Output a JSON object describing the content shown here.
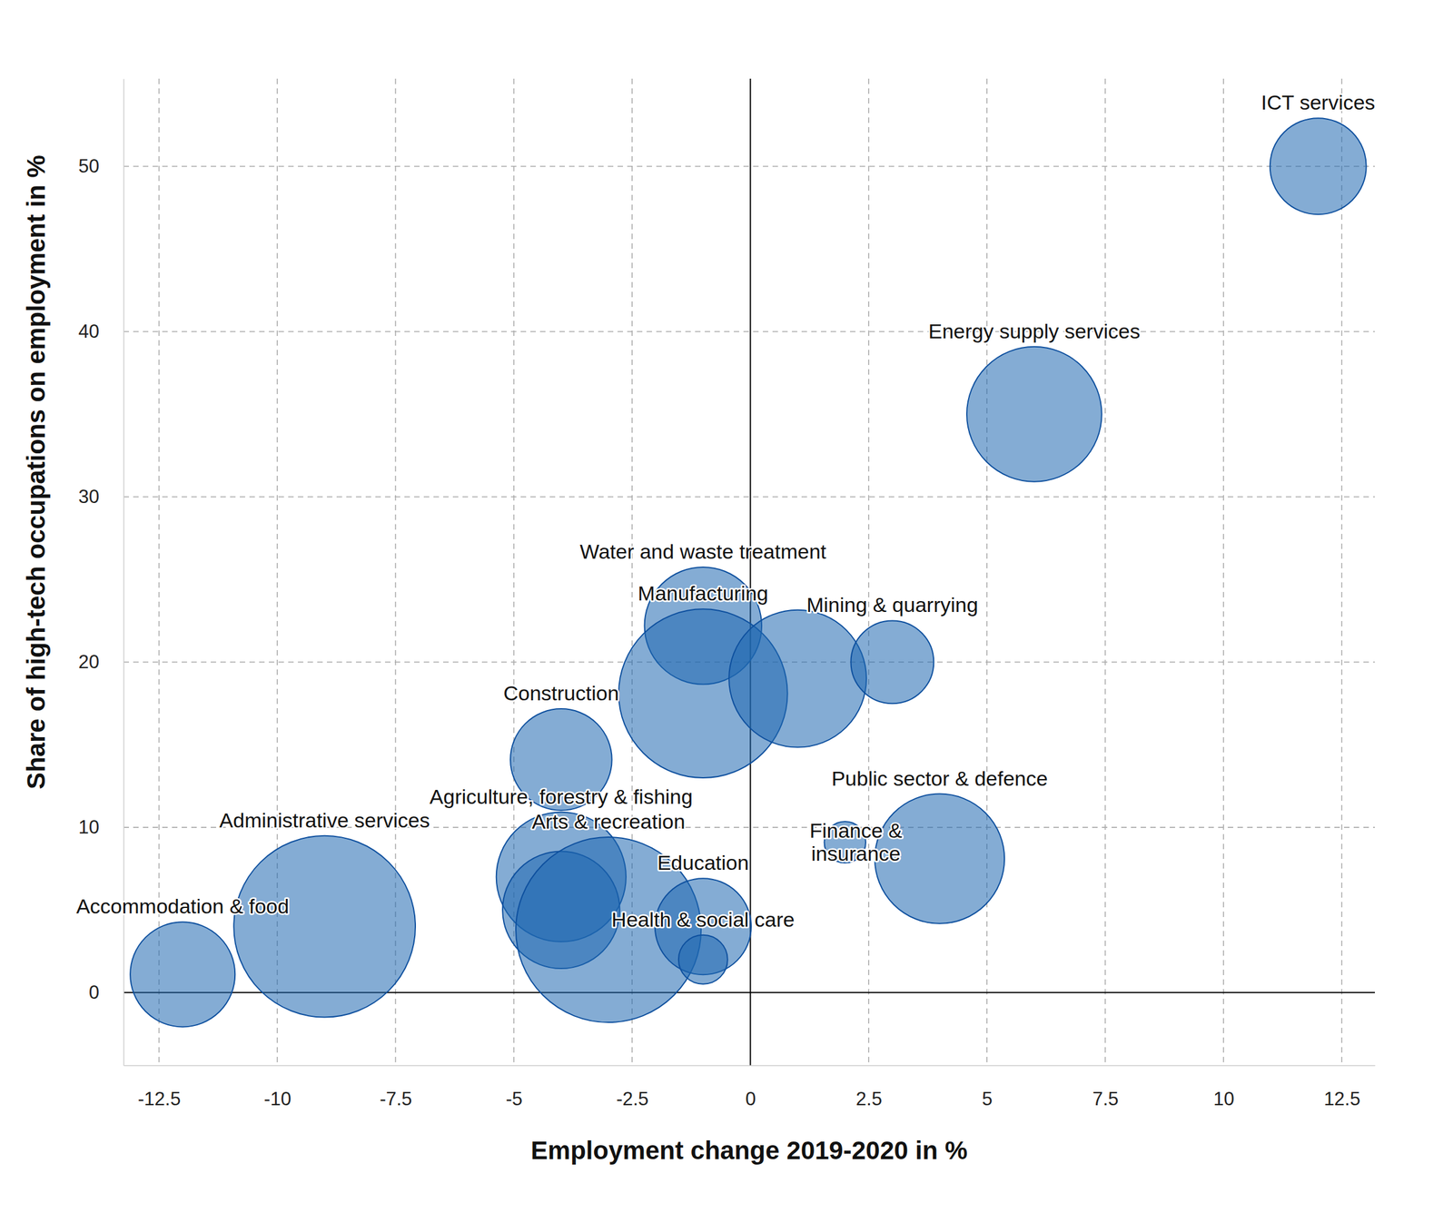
{
  "chart_data": {
    "type": "scatter",
    "x_label": "Employment change 2019-2020 in %",
    "y_label": "Share of high-tech occupations on employment in %",
    "labels": [
      "ICT services",
      "Energy supply services",
      "Water and waste treatment",
      "Manufacturing",
      null,
      "Mining & quarrying",
      "Construction",
      "Public sector & defence",
      "Finance &\ninsurance",
      "Administrative services",
      "Accommodation & food",
      "Agriculture, forestry & fishing",
      null,
      "Arts & recreation",
      "Education",
      "Health & social care"
    ],
    "x": [
      12,
      6,
      -1,
      -1,
      1,
      3,
      -4,
      4,
      2,
      -9,
      -12,
      -4,
      -4,
      -3,
      -1,
      -1
    ],
    "values": [
      50,
      35,
      22.2,
      18.1,
      19,
      20,
      14.1,
      8.1,
      9.1,
      4,
      1.1,
      7,
      5,
      3.8,
      4,
      2
    ],
    "sizes": [
      27,
      53,
      40,
      83,
      55,
      20,
      30,
      49,
      5,
      96,
      32,
      49,
      40,
      100,
      27,
      7
    ],
    "color": "#1f68b0",
    "marker": "circle",
    "xlim": [
      -13.25,
      13.2
    ],
    "ylim": [
      -4.4,
      55.3
    ],
    "xticks": [
      -12.5,
      -10,
      -7.5,
      -5,
      -2.5,
      0,
      2.5,
      5,
      7.5,
      10,
      12.5
    ],
    "yticks": [
      0,
      10,
      20,
      30,
      40,
      50
    ],
    "grid": true
  }
}
